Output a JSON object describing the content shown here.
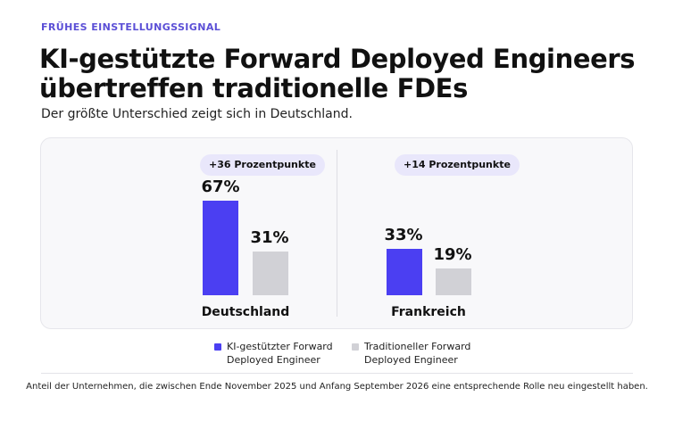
{
  "eyebrow": "FRÜHES EINSTELLUNGSSIGNAL",
  "title_line1": "KI-gestützte Forward Deployed Engineers",
  "title_line2": "übertreffen traditionelle FDEs",
  "subtitle": "Der größte Unterschied zeigt sich in Deutschland.",
  "footnote": "Anteil der Unternehmen, die zwischen Ende November 2025 und Anfang September 2026 eine entsprechende Rolle neu eingestellt haben.",
  "colors": {
    "ai": "#4b3ff2",
    "traditional": "#d1d1d6",
    "accent": "#5b4fd6"
  },
  "chart_data": {
    "type": "bar",
    "categories": [
      "Deutschland",
      "Frankreich"
    ],
    "series": [
      {
        "name": "KI-gestützter Forward Deployed Engineer",
        "values": [
          67,
          33
        ],
        "labels": [
          "67%",
          "33%"
        ]
      },
      {
        "name": "Traditioneller Forward Deployed Engineer",
        "values": [
          31,
          19
        ],
        "labels": [
          "31%",
          "19%"
        ]
      }
    ],
    "differences": [
      "+36 Prozentpunkte",
      "+14 Prozentpunkte"
    ],
    "legend": [
      {
        "line1": "KI-gestützter Forward",
        "line2": "Deployed Engineer"
      },
      {
        "line1": "Traditioneller Forward",
        "line2": "Deployed Engineer"
      }
    ],
    "legend_position": "bottom",
    "unit": "%",
    "ylim": [
      0,
      100
    ],
    "grid": false
  }
}
